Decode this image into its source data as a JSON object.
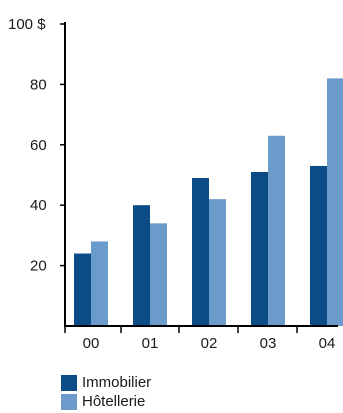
{
  "chart_data": {
    "type": "bar",
    "categories": [
      "00",
      "01",
      "02",
      "03",
      "04"
    ],
    "series": [
      {
        "name": "Immobilier",
        "values": [
          24,
          40,
          49,
          51,
          53
        ],
        "color": "#0b4c86"
      },
      {
        "name": "Hôtellerie",
        "values": [
          28,
          34,
          42,
          63,
          82
        ],
        "color": "#6a9bcb"
      }
    ],
    "y_ticks": [
      {
        "value": 20,
        "label": "20"
      },
      {
        "value": 40,
        "label": "40"
      },
      {
        "value": 60,
        "label": "60"
      },
      {
        "value": 80,
        "label": "80"
      },
      {
        "value": 100,
        "label": "100 $"
      }
    ],
    "ylim": [
      0,
      100
    ],
    "grid": false,
    "legend_position": "bottom-left"
  }
}
